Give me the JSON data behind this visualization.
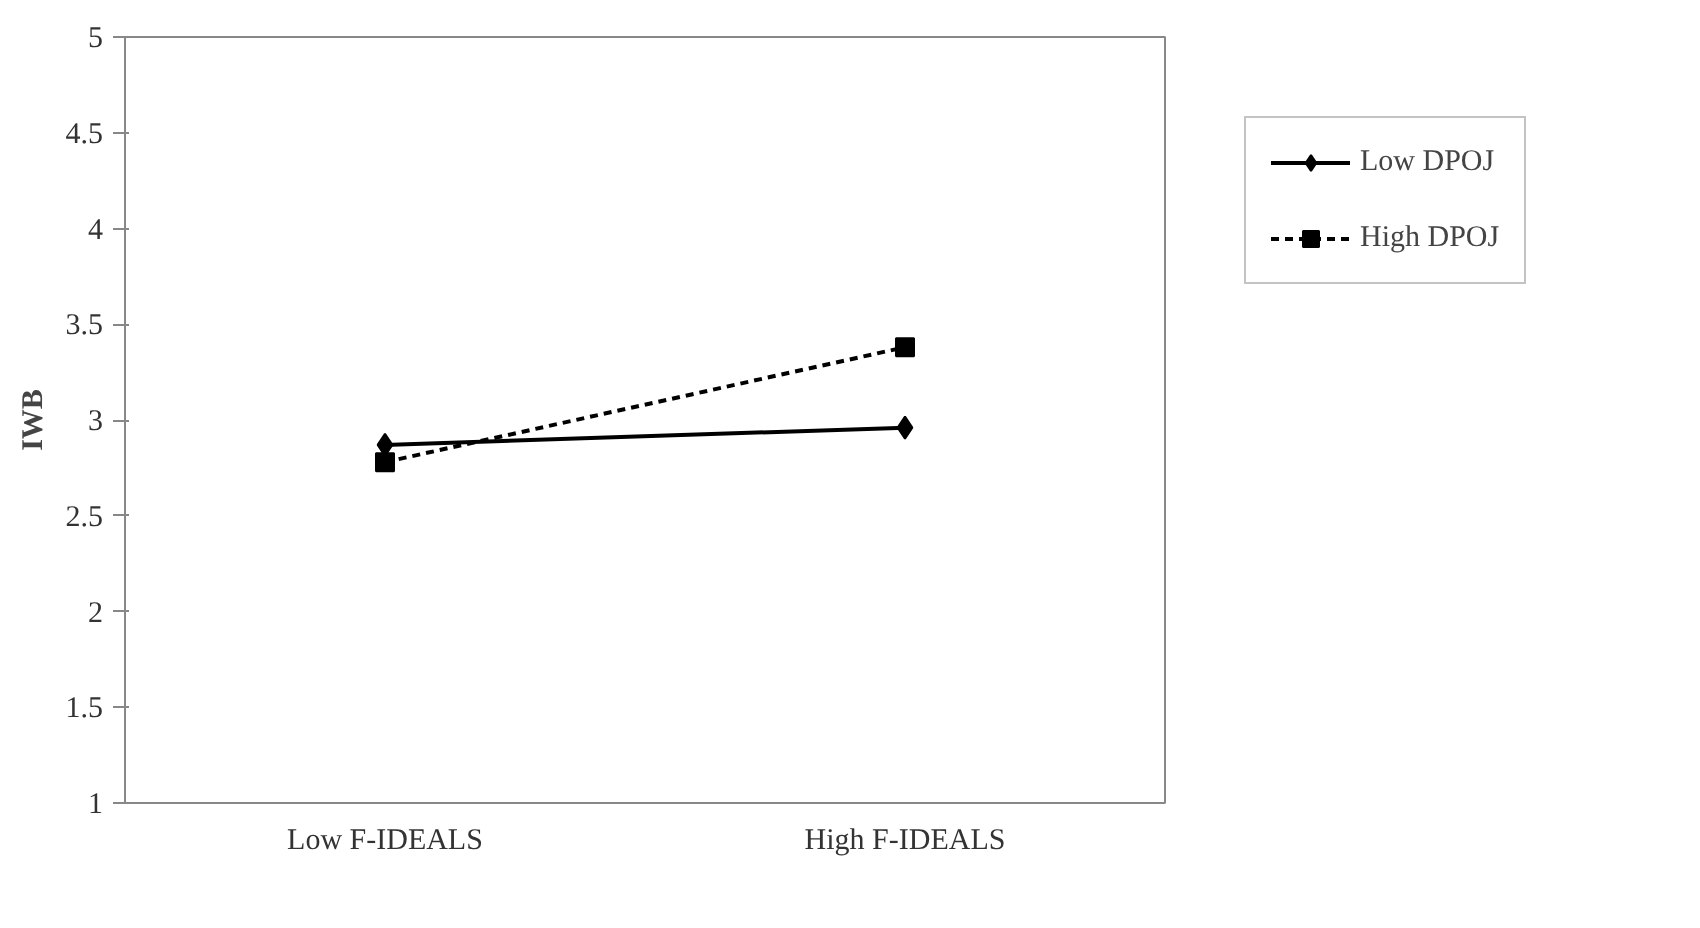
{
  "chart_data": {
    "type": "line",
    "ylabel": "IWB",
    "categories": [
      "Low F-IDEALS",
      "High F-IDEALS"
    ],
    "series": [
      {
        "name": "Low DPOJ",
        "color": "#000000",
        "values": [
          2.87,
          2.96
        ],
        "marker": "diamond",
        "line_style": "solid"
      },
      {
        "name": "High DPOJ",
        "color": "#000000",
        "values": [
          2.78,
          3.38
        ],
        "marker": "square",
        "line_style": "dashed"
      }
    ],
    "ylim": [
      1,
      5
    ],
    "yticks": [
      1,
      1.5,
      2,
      2.5,
      3,
      3.5,
      4,
      4.5,
      5
    ],
    "grid": false,
    "legend": "right"
  }
}
